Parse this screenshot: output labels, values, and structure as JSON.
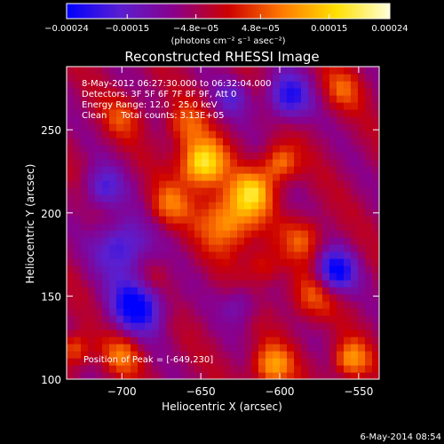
{
  "chart_data": {
    "type": "heatmap",
    "title": "Reconstructed RHESSI Image",
    "xlabel": "Heliocentric X (arcsec)",
    "ylabel": "Heliocentric Y (arcsec)",
    "xlim": [
      -735,
      -537
    ],
    "ylim": [
      100,
      288
    ],
    "x_ticks": [
      "−700",
      "−650",
      "−600",
      "−550"
    ],
    "x_tick_values": [
      -700,
      -650,
      -600,
      -550
    ],
    "y_ticks": [
      "100",
      "150",
      "200",
      "250"
    ],
    "y_tick_values": [
      100,
      150,
      200,
      250
    ],
    "colorbar": {
      "range": [
        -0.00024,
        0.00024
      ],
      "ticks": [
        "−0.00024",
        "−0.00015",
        "−4.8e−05",
        "4.8e−05",
        "0.00015",
        "0.00024"
      ],
      "tick_values": [
        -0.00024,
        -0.00015,
        -4.8e-05,
        4.8e-05,
        0.00015,
        0.00024
      ],
      "unit_label": "(photons cm⁻² s⁻¹ asec⁻²)",
      "colors": [
        "#0000ff",
        "#5a1fd0",
        "#8a008a",
        "#cc0000",
        "#ff7a00",
        "#ffe000",
        "#ffffd8"
      ]
    },
    "annotations": [
      "8-May-2012 06:27:30.000 to 06:32:04.000",
      "Detectors: 3F 5F 6F 7F 8F 9F, Att 0",
      "Energy Range: 12.0 - 25.0 keV",
      "Clean     Total counts: 3.13E+05"
    ],
    "peak_label": "Position of Peak = [-649,230]",
    "peak": {
      "x": -649,
      "y": 230
    },
    "sources": [
      {
        "x": -649,
        "y": 230,
        "r": 10,
        "value": 0.00024
      },
      {
        "x": -632,
        "y": 196,
        "r": 13,
        "value": 0.00017
      },
      {
        "x": -617,
        "y": 213,
        "r": 9,
        "value": 0.00016
      },
      {
        "x": -600,
        "y": 230,
        "r": 8,
        "value": 0.00014
      },
      {
        "x": -670,
        "y": 205,
        "r": 9,
        "value": 0.00011
      },
      {
        "x": -660,
        "y": 253,
        "r": 9,
        "value": 0.0001
      },
      {
        "x": -700,
        "y": 258,
        "r": 9,
        "value": 8e-05
      },
      {
        "x": -585,
        "y": 185,
        "r": 9,
        "value": 0.0001
      },
      {
        "x": -580,
        "y": 150,
        "r": 10,
        "value": 0.0001
      },
      {
        "x": -610,
        "y": 168,
        "r": 8,
        "value": 8e-05
      },
      {
        "x": -605,
        "y": 108,
        "r": 9,
        "value": 0.00016
      },
      {
        "x": -555,
        "y": 112,
        "r": 8,
        "value": 0.00015
      },
      {
        "x": -700,
        "y": 115,
        "r": 9,
        "value": 0.00011
      },
      {
        "x": -730,
        "y": 118,
        "r": 7,
        "value": 0.00012
      },
      {
        "x": -560,
        "y": 275,
        "r": 9,
        "value": 9e-05
      },
      {
        "x": -680,
        "y": 160,
        "r": 8,
        "value": 5e-05
      },
      {
        "x": -700,
        "y": 180,
        "r": 12,
        "value": -0.00015
      },
      {
        "x": -690,
        "y": 145,
        "r": 12,
        "value": -0.0002
      },
      {
        "x": -565,
        "y": 165,
        "r": 9,
        "value": -0.00019
      },
      {
        "x": -595,
        "y": 270,
        "r": 10,
        "value": -0.00016
      },
      {
        "x": -712,
        "y": 215,
        "r": 9,
        "value": -0.00012
      },
      {
        "x": -625,
        "y": 145,
        "r": 8,
        "value": -8e-05
      },
      {
        "x": -630,
        "y": 270,
        "r": 8,
        "value": -9e-05
      }
    ]
  },
  "footer": {
    "date": "6-May-2014 08:54"
  }
}
